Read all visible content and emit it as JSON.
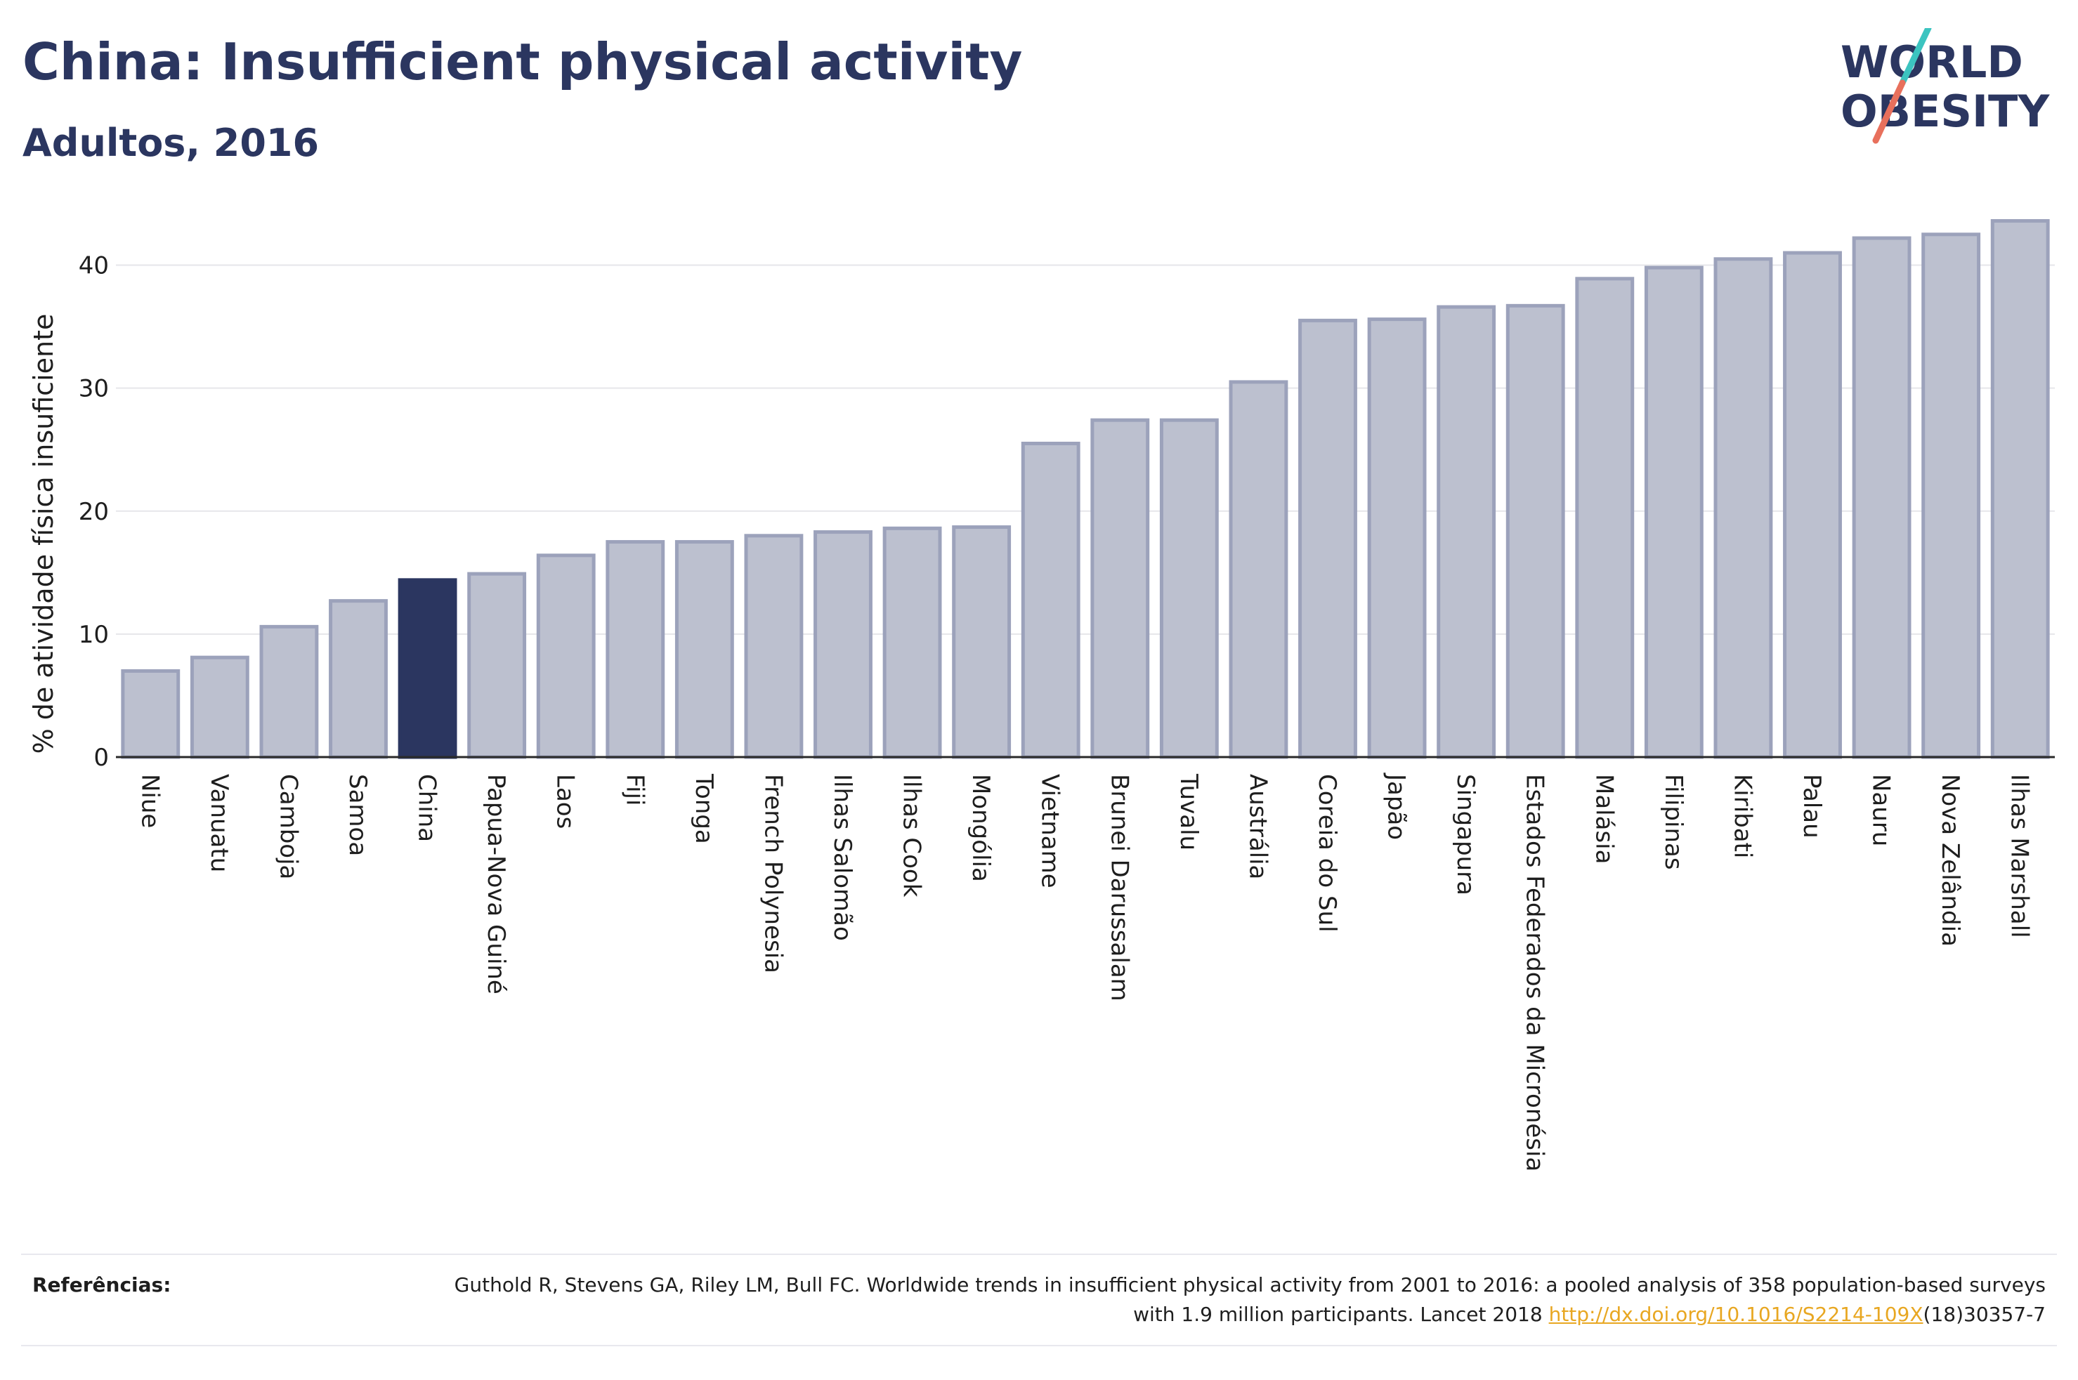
{
  "header": {
    "title": "China: Insufficient physical activity",
    "subtitle": "Adultos, 2016"
  },
  "logo": {
    "line1": "WORLD",
    "line2": "OBESITY",
    "slash_colors": [
      "#3cc4c0",
      "#e8705c"
    ],
    "text_color": "#2b3660"
  },
  "chart_data": {
    "type": "bar",
    "title": "China: Insufficient physical activity",
    "subtitle": "Adultos, 2016",
    "xlabel": "",
    "ylabel": "% de atividade física insuficiente",
    "ylim": [
      0,
      45
    ],
    "yticks": [
      0,
      10,
      20,
      30,
      40
    ],
    "grid": true,
    "highlight": "China",
    "colors": {
      "bar": "#bcc0cf",
      "bar_edge": "#9ca2bb",
      "highlight": "#2b3660"
    },
    "categories": [
      "Niue",
      "Vanuatu",
      "Camboja",
      "Samoa",
      "China",
      "Papua-Nova Guiné",
      "Laos",
      "Fiji",
      "Tonga",
      "French Polynesia",
      "Ilhas Salomão",
      "Ilhas Cook",
      "Mongólia",
      "Vietname",
      "Brunei Darussalam",
      "Tuvalu",
      "Austrália",
      "Coreia do Sul",
      "Japão",
      "Singapura",
      "Estados Federados da Micronésia",
      "Malásia",
      "Filipinas",
      "Kiribati",
      "Palau",
      "Nauru",
      "Nova Zelândia",
      "Ilhas Marshall"
    ],
    "values": [
      7.0,
      8.1,
      10.6,
      12.7,
      14.4,
      14.9,
      16.4,
      17.5,
      17.5,
      18.0,
      18.3,
      18.6,
      18.7,
      25.5,
      27.4,
      27.4,
      30.5,
      35.5,
      35.6,
      36.6,
      36.7,
      38.9,
      39.8,
      40.5,
      41.0,
      42.2,
      42.5,
      43.6
    ]
  },
  "footer": {
    "label": "Referências:",
    "citation_part1": "Guthold R, Stevens GA, Riley LM, Bull FC. Worldwide trends in insufficient physical activity from 2001 to 2016: a pooled analysis of 358 population-based surveys with 1.9 million participants. Lancet 2018 ",
    "link_text": "http://dx.doi.org/10.1016/S2214-109X",
    "citation_part2": "(18)30357-7"
  }
}
